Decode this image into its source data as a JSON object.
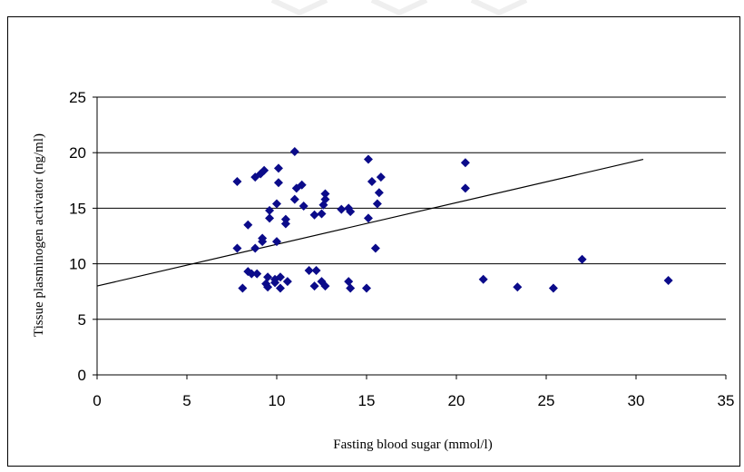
{
  "chart_data": {
    "type": "scatter",
    "title": "",
    "xlabel": "Fasting blood sugar (mmol/l)",
    "ylabel": "Tissue plasminogen activator (ng/ml)",
    "xlim": [
      0,
      35
    ],
    "ylim": [
      0,
      25
    ],
    "xticks": [
      0,
      5,
      10,
      15,
      20,
      25,
      30,
      35
    ],
    "yticks": [
      0,
      5,
      10,
      15,
      20,
      25
    ],
    "grid": "horizontal",
    "legend": "none",
    "marker": "diamond",
    "marker_color": "#0b0b8a",
    "series": [
      {
        "points": [
          [
            7.8,
            17.4
          ],
          [
            7.8,
            11.4
          ],
          [
            8.1,
            7.8
          ],
          [
            8.4,
            13.5
          ],
          [
            8.4,
            9.3
          ],
          [
            8.6,
            9.1
          ],
          [
            8.8,
            11.4
          ],
          [
            8.8,
            17.8
          ],
          [
            8.9,
            9.1
          ],
          [
            9.1,
            18.1
          ],
          [
            9.2,
            12.3
          ],
          [
            9.2,
            12.0
          ],
          [
            9.3,
            18.4
          ],
          [
            9.4,
            8.2
          ],
          [
            9.5,
            8.8
          ],
          [
            9.5,
            7.9
          ],
          [
            9.6,
            14.1
          ],
          [
            9.6,
            14.8
          ],
          [
            9.9,
            8.3
          ],
          [
            9.9,
            8.6
          ],
          [
            10.0,
            12.0
          ],
          [
            10.0,
            15.4
          ],
          [
            10.1,
            18.6
          ],
          [
            10.1,
            17.3
          ],
          [
            10.2,
            8.8
          ],
          [
            10.2,
            7.8
          ],
          [
            10.5,
            14.0
          ],
          [
            10.5,
            13.6
          ],
          [
            10.6,
            8.4
          ],
          [
            11.0,
            20.1
          ],
          [
            11.0,
            15.8
          ],
          [
            11.1,
            16.8
          ],
          [
            11.4,
            17.1
          ],
          [
            11.5,
            15.2
          ],
          [
            11.8,
            9.4
          ],
          [
            12.1,
            14.4
          ],
          [
            12.1,
            8.0
          ],
          [
            12.2,
            9.4
          ],
          [
            12.5,
            14.5
          ],
          [
            12.5,
            8.4
          ],
          [
            12.6,
            15.3
          ],
          [
            12.7,
            16.3
          ],
          [
            12.7,
            15.8
          ],
          [
            12.7,
            8.0
          ],
          [
            13.6,
            14.9
          ],
          [
            14.0,
            15.0
          ],
          [
            14.0,
            8.4
          ],
          [
            14.1,
            14.7
          ],
          [
            14.1,
            7.8
          ],
          [
            15.0,
            7.8
          ],
          [
            15.1,
            19.4
          ],
          [
            15.1,
            14.1
          ],
          [
            15.3,
            17.4
          ],
          [
            15.5,
            11.4
          ],
          [
            15.6,
            15.4
          ],
          [
            15.7,
            16.4
          ],
          [
            15.8,
            17.8
          ],
          [
            20.5,
            19.1
          ],
          [
            20.5,
            16.8
          ],
          [
            21.5,
            8.6
          ],
          [
            23.4,
            7.9
          ],
          [
            25.4,
            7.8
          ],
          [
            27.0,
            10.4
          ],
          [
            31.8,
            8.5
          ]
        ]
      }
    ],
    "trendline": {
      "x": [
        0,
        30.4
      ],
      "y": [
        8.0,
        19.4
      ]
    }
  }
}
